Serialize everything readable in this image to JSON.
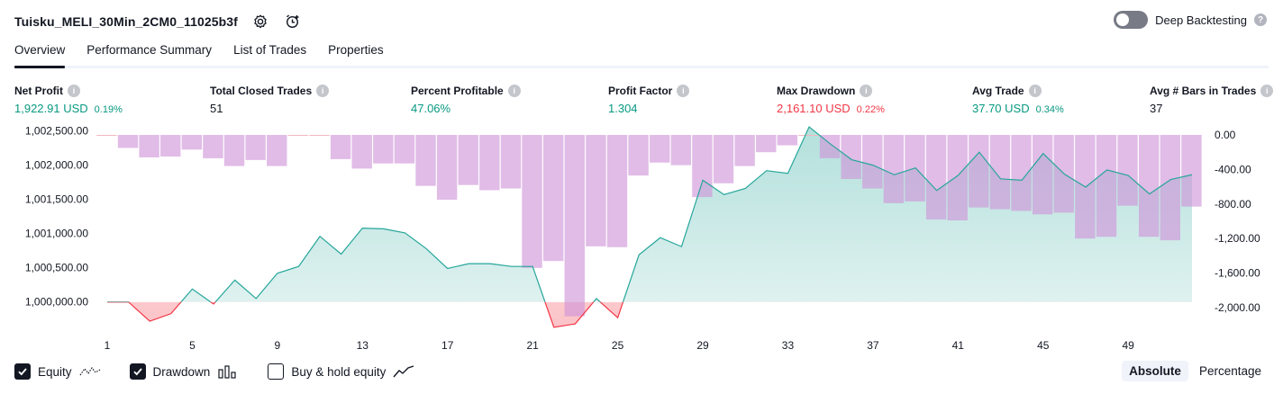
{
  "header": {
    "strategy_name": "Tuisku_MELI_30Min_2CM0_11025b3f",
    "settings_icon": "gear-icon",
    "alert_icon": "add-alert-icon"
  },
  "deep_backtesting": {
    "label": "Deep Backtesting",
    "enabled": false,
    "help_icon": "question-icon",
    "help_glyph": "?"
  },
  "tabs": [
    {
      "label": "Overview",
      "active": true
    },
    {
      "label": "Performance Summary",
      "active": false
    },
    {
      "label": "List of Trades",
      "active": false
    },
    {
      "label": "Properties",
      "active": false
    }
  ],
  "metrics": [
    {
      "label": "Net Profit",
      "value": "1,922.91 USD",
      "pct": "0.19%",
      "color": "#089981"
    },
    {
      "label": "Total Closed Trades",
      "value": "51",
      "pct": "",
      "color": "#131722"
    },
    {
      "label": "Percent Profitable",
      "value": "47.06%",
      "pct": "",
      "color": "#089981"
    },
    {
      "label": "Profit Factor",
      "value": "1.304",
      "pct": "",
      "color": "#089981"
    },
    {
      "label": "Max Drawdown",
      "value": "2,161.10 USD",
      "pct": "0.22%",
      "color": "#f23645"
    },
    {
      "label": "Avg Trade",
      "value": "37.70 USD",
      "pct": "0.34%",
      "color": "#089981"
    },
    {
      "label": "Avg # Bars in Trades",
      "value": "37",
      "pct": "",
      "color": "#131722"
    }
  ],
  "info_glyph": "i",
  "chart_data": {
    "type": "line",
    "x": [
      1,
      2,
      3,
      4,
      5,
      6,
      7,
      8,
      9,
      10,
      11,
      12,
      13,
      14,
      15,
      16,
      17,
      18,
      19,
      20,
      21,
      22,
      23,
      24,
      25,
      26,
      27,
      28,
      29,
      30,
      31,
      32,
      33,
      34,
      35,
      36,
      37,
      38,
      39,
      40,
      41,
      42,
      43,
      44,
      45,
      46,
      47,
      48,
      49,
      50,
      51,
      52
    ],
    "xticks": [
      1,
      5,
      9,
      13,
      17,
      21,
      25,
      29,
      33,
      37,
      41,
      45,
      49
    ],
    "series": [
      {
        "name": "Equity",
        "axis": "left",
        "values": [
          1000000,
          1000000,
          999720,
          999830,
          1000190,
          999970,
          1000320,
          1000050,
          1000420,
          1000520,
          1000960,
          1000700,
          1001080,
          1001070,
          1001010,
          1000780,
          1000490,
          1000560,
          1000560,
          1000520,
          1000520,
          999630,
          999680,
          1000050,
          999770,
          1000690,
          1000940,
          1000810,
          1001780,
          1001570,
          1001660,
          1001920,
          1001880,
          1002560,
          1002310,
          1002080,
          1002000,
          1001860,
          1001960,
          1001630,
          1001850,
          1002190,
          1001800,
          1001780,
          1002170,
          1001870,
          1001680,
          1001930,
          1001850,
          1001580,
          1001790,
          1001860
        ],
        "color_up": "#26a69a",
        "color_down": "#f23645"
      },
      {
        "name": "Drawdown",
        "axis": "right",
        "values": [
          0,
          -150,
          -260,
          -250,
          -170,
          -270,
          -360,
          -290,
          -360,
          0,
          0,
          -280,
          -390,
          -330,
          -330,
          -590,
          -750,
          -580,
          -640,
          -620,
          -1540,
          -1460,
          -2100,
          -1290,
          -1300,
          -470,
          -320,
          -350,
          -720,
          -560,
          -360,
          -200,
          -120,
          0,
          -270,
          -510,
          -620,
          -790,
          -770,
          -980,
          -990,
          -840,
          -860,
          -880,
          -920,
          -900,
          -1200,
          -1180,
          -820,
          -1180,
          -1220,
          -830
        ],
        "color": "#ce93d8"
      }
    ],
    "left_axis": {
      "ticks": [
        "1,002,500.00",
        "1,002,000.00",
        "1,001,500.00",
        "1,001,000.00",
        "1,000,500.00",
        "1,000,000.00"
      ],
      "values": [
        1002500,
        1002000,
        1001500,
        1001000,
        1000500,
        1000000
      ],
      "range": [
        999615,
        1002600
      ]
    },
    "right_axis": {
      "ticks": [
        "0.00",
        "-400.00",
        "-800.00",
        "-1,200.00",
        "-1,600.00",
        "-2,000.00"
      ],
      "values": [
        0,
        -400,
        -800,
        -1200,
        -1600,
        -2000
      ],
      "range": [
        -2000,
        0
      ]
    },
    "grid": false
  },
  "legend": [
    {
      "label": "Equity",
      "checked": true,
      "icon": "equity-line-icon"
    },
    {
      "label": "Drawdown",
      "checked": true,
      "icon": "drawdown-bars-icon"
    },
    {
      "label": "Buy & hold equity",
      "checked": false,
      "icon": "buy-hold-line-icon"
    }
  ],
  "mode": {
    "options": [
      "Absolute",
      "Percentage"
    ],
    "selected": "Absolute"
  }
}
